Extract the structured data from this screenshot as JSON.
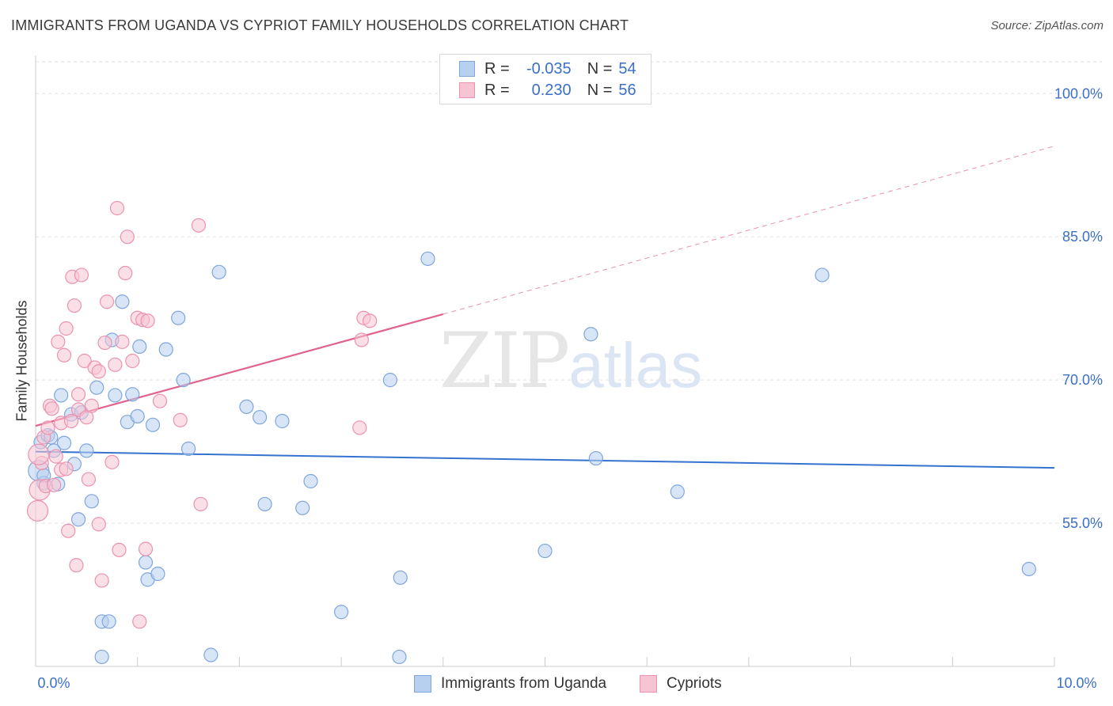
{
  "header": {
    "title": "IMMIGRANTS FROM UGANDA VS CYPRIOT FAMILY HOUSEHOLDS CORRELATION CHART",
    "source": "Source: ZipAtlas.com"
  },
  "watermark": {
    "zip": "ZIP",
    "atlas": "atlas"
  },
  "legend": {
    "rows": [
      {
        "r_label": "R =",
        "r_value": "-0.035",
        "n_label": "N =",
        "n_value": "54"
      },
      {
        "r_label": "R =",
        "r_value": "0.230",
        "n_label": "N =",
        "n_value": "56"
      }
    ],
    "series": [
      "Immigrants from Uganda",
      "Cypriots"
    ]
  },
  "colors": {
    "blue_fill": "#b8d0f0",
    "blue_stroke": "#7fa6dd",
    "blue_line": "#3572d0",
    "pink_fill": "#f7c4d4",
    "pink_stroke": "#eb93ae",
    "pink_line": "#e0628d",
    "axis_text": "#3b6fc9",
    "grid": "#e3e3e3"
  },
  "chart_data": {
    "type": "scatter",
    "title": "IMMIGRANTS FROM UGANDA VS CYPRIOT FAMILY HOUSEHOLDS CORRELATION CHART",
    "xlabel": "",
    "ylabel": "Family Households",
    "xlim": [
      0,
      10
    ],
    "ylim": [
      40,
      104
    ],
    "x_tick_labels": [
      "0.0%",
      "10.0%"
    ],
    "y_ticks": [
      55,
      70,
      85,
      100
    ],
    "y_tick_labels": [
      "55.0%",
      "70.0%",
      "85.0%",
      "100.0%"
    ],
    "series": [
      {
        "name": "Immigrants from Uganda",
        "R": -0.035,
        "N": 54,
        "trend": {
          "x": [
            0,
            10
          ],
          "y": [
            62.5,
            60.8
          ]
        },
        "points": [
          [
            0.03,
            60.5
          ],
          [
            0.05,
            63.5
          ],
          [
            0.08,
            59.2
          ],
          [
            0.12,
            64.2
          ],
          [
            0.15,
            64.0
          ],
          [
            0.18,
            62.6
          ],
          [
            0.22,
            59.1
          ],
          [
            0.25,
            68.4
          ],
          [
            0.28,
            63.4
          ],
          [
            0.35,
            66.4
          ],
          [
            0.38,
            61.2
          ],
          [
            0.42,
            55.4
          ],
          [
            0.45,
            66.6
          ],
          [
            0.5,
            62.6
          ],
          [
            0.55,
            57.3
          ],
          [
            0.6,
            69.2
          ],
          [
            0.65,
            44.7
          ],
          [
            0.65,
            41.0
          ],
          [
            0.72,
            44.7
          ],
          [
            0.75,
            74.2
          ],
          [
            0.78,
            68.4
          ],
          [
            0.85,
            78.2
          ],
          [
            0.9,
            65.6
          ],
          [
            0.95,
            68.5
          ],
          [
            1.0,
            66.2
          ],
          [
            1.02,
            73.5
          ],
          [
            1.08,
            50.9
          ],
          [
            1.1,
            49.1
          ],
          [
            1.15,
            65.3
          ],
          [
            1.2,
            49.7
          ],
          [
            1.28,
            73.2
          ],
          [
            1.4,
            76.5
          ],
          [
            1.45,
            70.0
          ],
          [
            1.5,
            62.8
          ],
          [
            1.8,
            81.3
          ],
          [
            1.72,
            41.2
          ],
          [
            2.07,
            67.2
          ],
          [
            2.2,
            66.1
          ],
          [
            2.25,
            57.0
          ],
          [
            2.42,
            65.7
          ],
          [
            2.62,
            56.6
          ],
          [
            2.7,
            59.4
          ],
          [
            3.0,
            45.7
          ],
          [
            3.48,
            70.0
          ],
          [
            3.58,
            49.3
          ],
          [
            3.57,
            41.0
          ],
          [
            3.85,
            82.7
          ],
          [
            5.0,
            52.1
          ],
          [
            5.45,
            74.8
          ],
          [
            5.5,
            61.8
          ],
          [
            6.3,
            58.3
          ],
          [
            7.72,
            81.0
          ],
          [
            9.75,
            50.2
          ],
          [
            0.08,
            60.0
          ]
        ]
      },
      {
        "name": "Cypriots",
        "R": 0.23,
        "N": 56,
        "trend": {
          "x": [
            0,
            4.0
          ],
          "y": [
            65.2,
            76.9
          ]
        },
        "trend_dashed": {
          "x": [
            4.0,
            10
          ],
          "y": [
            76.9,
            94.5
          ]
        },
        "points": [
          [
            0.02,
            56.3
          ],
          [
            0.04,
            58.5
          ],
          [
            0.06,
            61.3
          ],
          [
            0.08,
            64.0
          ],
          [
            0.1,
            58.9
          ],
          [
            0.12,
            65.0
          ],
          [
            0.14,
            67.3
          ],
          [
            0.16,
            67.0
          ],
          [
            0.18,
            59.0
          ],
          [
            0.2,
            62.0
          ],
          [
            0.22,
            74.0
          ],
          [
            0.25,
            65.5
          ],
          [
            0.25,
            60.6
          ],
          [
            0.28,
            72.6
          ],
          [
            0.3,
            75.4
          ],
          [
            0.3,
            60.7
          ],
          [
            0.32,
            54.2
          ],
          [
            0.35,
            65.7
          ],
          [
            0.36,
            80.8
          ],
          [
            0.38,
            77.8
          ],
          [
            0.4,
            50.6
          ],
          [
            0.42,
            68.5
          ],
          [
            0.42,
            66.9
          ],
          [
            0.45,
            81.0
          ],
          [
            0.48,
            72.0
          ],
          [
            0.5,
            66.1
          ],
          [
            0.52,
            59.6
          ],
          [
            0.55,
            67.3
          ],
          [
            0.58,
            71.3
          ],
          [
            0.62,
            54.9
          ],
          [
            0.62,
            70.9
          ],
          [
            0.65,
            49.0
          ],
          [
            0.68,
            73.9
          ],
          [
            0.7,
            78.2
          ],
          [
            0.75,
            61.4
          ],
          [
            0.78,
            71.6
          ],
          [
            0.8,
            88.0
          ],
          [
            0.82,
            52.2
          ],
          [
            0.85,
            74.0
          ],
          [
            0.88,
            81.2
          ],
          [
            0.9,
            85.0
          ],
          [
            0.95,
            72.0
          ],
          [
            1.0,
            76.5
          ],
          [
            1.05,
            76.3
          ],
          [
            1.02,
            44.7
          ],
          [
            1.08,
            52.3
          ],
          [
            1.1,
            76.2
          ],
          [
            1.22,
            67.8
          ],
          [
            1.42,
            65.8
          ],
          [
            1.6,
            86.2
          ],
          [
            1.62,
            57.0
          ],
          [
            3.18,
            65.0
          ],
          [
            3.2,
            74.2
          ],
          [
            3.22,
            76.5
          ],
          [
            3.28,
            76.2
          ],
          [
            0.03,
            62.2
          ]
        ]
      }
    ]
  }
}
